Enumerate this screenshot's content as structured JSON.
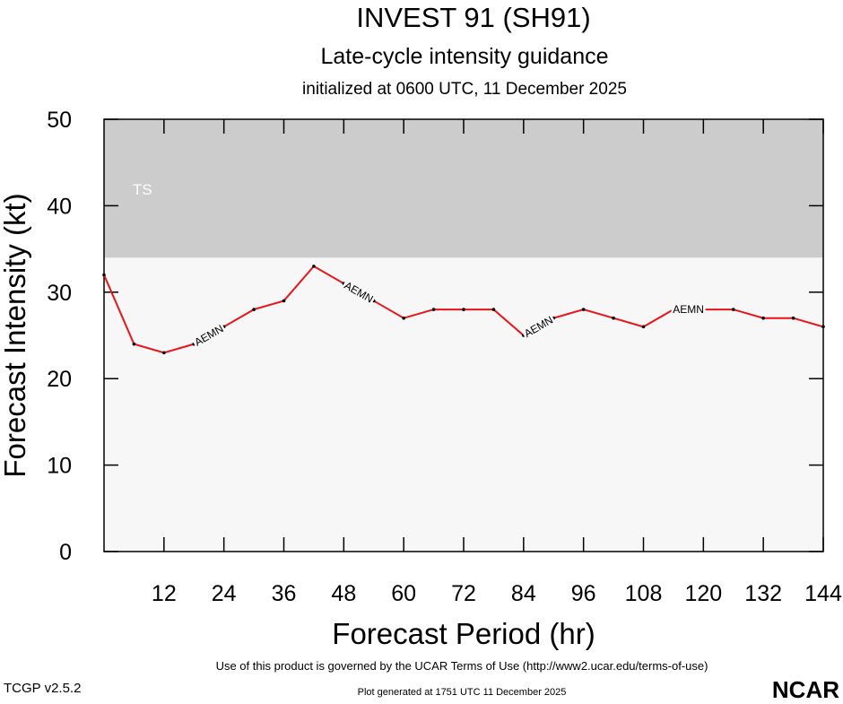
{
  "chart_data": {
    "type": "line",
    "title": "INVEST 91 (SH91)",
    "subtitle": "Late-cycle intensity guidance",
    "init_text": "initialized at 0600 UTC, 11 December 2025",
    "x_label": "Forecast Period (hr)",
    "y_label": "Forecast Intensity (kt)",
    "x": [
      0,
      6,
      12,
      18,
      24,
      30,
      36,
      42,
      48,
      54,
      60,
      66,
      72,
      78,
      84,
      90,
      96,
      102,
      108,
      114,
      120,
      126,
      132,
      138,
      144
    ],
    "series": [
      {
        "name": "AEMN",
        "color": "#e8141a",
        "values": [
          32,
          24,
          23,
          24,
          26,
          28,
          29,
          33,
          31,
          29,
          27,
          28,
          28,
          28,
          25,
          27,
          28,
          27,
          26,
          28,
          28,
          28,
          27,
          27,
          26
        ]
      }
    ],
    "xlim": [
      0,
      144
    ],
    "xticks": [
      12,
      24,
      36,
      48,
      60,
      72,
      84,
      96,
      108,
      120,
      132,
      144
    ],
    "ylim": [
      0,
      50
    ],
    "yticks": [
      0,
      10,
      20,
      30,
      40,
      50
    ],
    "bands": [
      {
        "label": "TS",
        "from": 34,
        "to": 50,
        "color": "#cccccc"
      }
    ],
    "footer": {
      "terms": "Use of this product is governed by the UCAR Terms of Use (http://www2.ucar.edu/terms-of-use)",
      "version": "TCGP v2.5.2",
      "generated": "Plot generated at 1751 UTC   11 December 2025",
      "logo": "NCAR"
    }
  }
}
